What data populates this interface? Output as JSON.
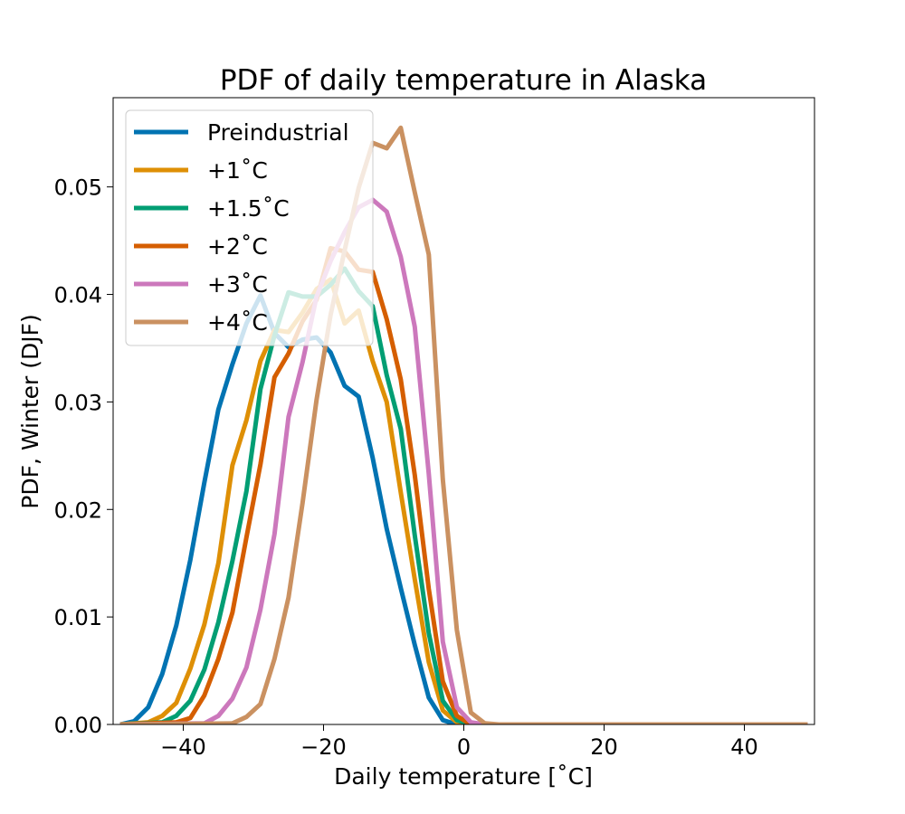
{
  "chart_data": {
    "type": "line",
    "title": "PDF of daily temperature in Alaska",
    "xlabel": "Daily temperature [˚C]",
    "ylabel": "PDF, Winter (DJF)",
    "xlim": [
      -50,
      50
    ],
    "ylim": [
      0,
      0.0583
    ],
    "xticks": [
      -40,
      -20,
      0,
      20,
      40
    ],
    "xtick_labels": [
      "−40",
      "−20",
      "0",
      "20",
      "40"
    ],
    "yticks": [
      0,
      0.01,
      0.02,
      0.03,
      0.04,
      0.05
    ],
    "ytick_labels": [
      "0.00",
      "0.01",
      "0.02",
      "0.03",
      "0.04",
      "0.05"
    ],
    "grid": false,
    "legend_position": "upper-left",
    "series": [
      {
        "name": "Preindustrial",
        "color": "#0173b2",
        "points": [
          [
            -49,
            0.0
          ],
          [
            -47,
            0.0003
          ],
          [
            -45,
            0.0016
          ],
          [
            -43,
            0.0047
          ],
          [
            -41,
            0.0092
          ],
          [
            -39,
            0.0153
          ],
          [
            -37,
            0.0225
          ],
          [
            -35,
            0.0293
          ],
          [
            -33,
            0.0335
          ],
          [
            -31,
            0.0373
          ],
          [
            -29,
            0.0399
          ],
          [
            -27,
            0.0364
          ],
          [
            -25,
            0.0351
          ],
          [
            -23,
            0.0358
          ],
          [
            -21,
            0.036
          ],
          [
            -19,
            0.0346
          ],
          [
            -17,
            0.0315
          ],
          [
            -15,
            0.0305
          ],
          [
            -13,
            0.0248
          ],
          [
            -11,
            0.0182
          ],
          [
            -9,
            0.0127
          ],
          [
            -7,
            0.0074
          ],
          [
            -5,
            0.0025
          ],
          [
            -3,
            0.0004
          ],
          [
            -1,
            0.0
          ],
          [
            1,
            0.0
          ],
          [
            3,
            0.0
          ],
          [
            5,
            0.0
          ],
          [
            10,
            0.0
          ],
          [
            20,
            0.0
          ],
          [
            30,
            0.0
          ],
          [
            40,
            0.0
          ],
          [
            49,
            0.0
          ]
        ]
      },
      {
        "name": "+1˚C",
        "color": "#de8f05",
        "points": [
          [
            -49,
            0.0
          ],
          [
            -45,
            0.0002
          ],
          [
            -43,
            0.0008
          ],
          [
            -41,
            0.002
          ],
          [
            -39,
            0.0052
          ],
          [
            -37,
            0.0093
          ],
          [
            -35,
            0.015
          ],
          [
            -33,
            0.0241
          ],
          [
            -31,
            0.0283
          ],
          [
            -29,
            0.0338
          ],
          [
            -27,
            0.0367
          ],
          [
            -25,
            0.0365
          ],
          [
            -23,
            0.0383
          ],
          [
            -21,
            0.0405
          ],
          [
            -19,
            0.0414
          ],
          [
            -17,
            0.0373
          ],
          [
            -15,
            0.0385
          ],
          [
            -13,
            0.0338
          ],
          [
            -11,
            0.03
          ],
          [
            -9,
            0.0216
          ],
          [
            -7,
            0.0135
          ],
          [
            -5,
            0.0058
          ],
          [
            -3,
            0.0013
          ],
          [
            -1,
            0.0002
          ],
          [
            1,
            0.0
          ],
          [
            3,
            0.0
          ],
          [
            5,
            0.0
          ],
          [
            10,
            0.0
          ],
          [
            20,
            0.0
          ],
          [
            30,
            0.0
          ],
          [
            40,
            0.0
          ],
          [
            49,
            0.0
          ]
        ]
      },
      {
        "name": "+1.5˚C",
        "color": "#029e73",
        "points": [
          [
            -49,
            0.0
          ],
          [
            -43,
            0.0002
          ],
          [
            -41,
            0.0008
          ],
          [
            -39,
            0.0022
          ],
          [
            -37,
            0.0051
          ],
          [
            -35,
            0.0095
          ],
          [
            -33,
            0.0152
          ],
          [
            -31,
            0.0217
          ],
          [
            -29,
            0.0312
          ],
          [
            -27,
            0.0362
          ],
          [
            -25,
            0.0402
          ],
          [
            -23,
            0.0398
          ],
          [
            -21,
            0.0398
          ],
          [
            -19,
            0.0409
          ],
          [
            -17,
            0.0424
          ],
          [
            -15,
            0.0403
          ],
          [
            -13,
            0.0389
          ],
          [
            -11,
            0.0325
          ],
          [
            -9,
            0.0275
          ],
          [
            -7,
            0.0176
          ],
          [
            -5,
            0.0085
          ],
          [
            -3,
            0.0022
          ],
          [
            -1,
            0.0004
          ],
          [
            1,
            0.0
          ],
          [
            3,
            0.0
          ],
          [
            5,
            0.0
          ],
          [
            10,
            0.0
          ],
          [
            20,
            0.0
          ],
          [
            30,
            0.0
          ],
          [
            40,
            0.0
          ],
          [
            49,
            0.0
          ]
        ]
      },
      {
        "name": "+2˚C",
        "color": "#d55e00",
        "points": [
          [
            -49,
            0.0
          ],
          [
            -41,
            0.0002
          ],
          [
            -39,
            0.0006
          ],
          [
            -37,
            0.0027
          ],
          [
            -35,
            0.0061
          ],
          [
            -33,
            0.0104
          ],
          [
            -31,
            0.0174
          ],
          [
            -29,
            0.0242
          ],
          [
            -27,
            0.0323
          ],
          [
            -25,
            0.0345
          ],
          [
            -23,
            0.0375
          ],
          [
            -21,
            0.0395
          ],
          [
            -19,
            0.0443
          ],
          [
            -17,
            0.044
          ],
          [
            -15,
            0.0423
          ],
          [
            -13,
            0.0421
          ],
          [
            -11,
            0.0377
          ],
          [
            -9,
            0.0321
          ],
          [
            -7,
            0.0232
          ],
          [
            -5,
            0.0126
          ],
          [
            -3,
            0.004
          ],
          [
            -1,
            0.0008
          ],
          [
            1,
            0.0
          ],
          [
            3,
            0.0
          ],
          [
            5,
            0.0
          ],
          [
            10,
            0.0
          ],
          [
            20,
            0.0
          ],
          [
            30,
            0.0
          ],
          [
            40,
            0.0
          ],
          [
            49,
            0.0
          ]
        ]
      },
      {
        "name": "+3˚C",
        "color": "#cc78bc",
        "points": [
          [
            -49,
            0.0
          ],
          [
            -37,
            0.0001
          ],
          [
            -35,
            0.0008
          ],
          [
            -33,
            0.0024
          ],
          [
            -31,
            0.0053
          ],
          [
            -29,
            0.0107
          ],
          [
            -27,
            0.0177
          ],
          [
            -25,
            0.0286
          ],
          [
            -23,
            0.0337
          ],
          [
            -21,
            0.0398
          ],
          [
            -19,
            0.0431
          ],
          [
            -17,
            0.0458
          ],
          [
            -15,
            0.0481
          ],
          [
            -13,
            0.0488
          ],
          [
            -11,
            0.0477
          ],
          [
            -9,
            0.0435
          ],
          [
            -7,
            0.037
          ],
          [
            -5,
            0.0233
          ],
          [
            -3,
            0.0077
          ],
          [
            -1,
            0.0016
          ],
          [
            1,
            0.0002
          ],
          [
            3,
            0.0
          ],
          [
            5,
            0.0
          ],
          [
            10,
            0.0
          ],
          [
            20,
            0.0
          ],
          [
            30,
            0.0
          ],
          [
            40,
            0.0
          ],
          [
            49,
            0.0
          ]
        ]
      },
      {
        "name": "+4˚C",
        "color": "#ca9161",
        "points": [
          [
            -49,
            0.0
          ],
          [
            -33,
            0.0001
          ],
          [
            -31,
            0.0007
          ],
          [
            -29,
            0.0019
          ],
          [
            -27,
            0.0061
          ],
          [
            -25,
            0.0118
          ],
          [
            -23,
            0.0206
          ],
          [
            -21,
            0.0302
          ],
          [
            -19,
            0.0381
          ],
          [
            -17,
            0.0441
          ],
          [
            -15,
            0.0499
          ],
          [
            -13,
            0.0541
          ],
          [
            -11,
            0.0536
          ],
          [
            -9,
            0.0555
          ],
          [
            -7,
            0.0495
          ],
          [
            -5,
            0.0437
          ],
          [
            -3,
            0.0228
          ],
          [
            -1,
            0.0088
          ],
          [
            1,
            0.0011
          ],
          [
            3,
            0.0001
          ],
          [
            5,
            0.0
          ],
          [
            10,
            0.0
          ],
          [
            20,
            0.0
          ],
          [
            30,
            0.0
          ],
          [
            40,
            0.0
          ],
          [
            49,
            0.0
          ]
        ]
      }
    ]
  }
}
